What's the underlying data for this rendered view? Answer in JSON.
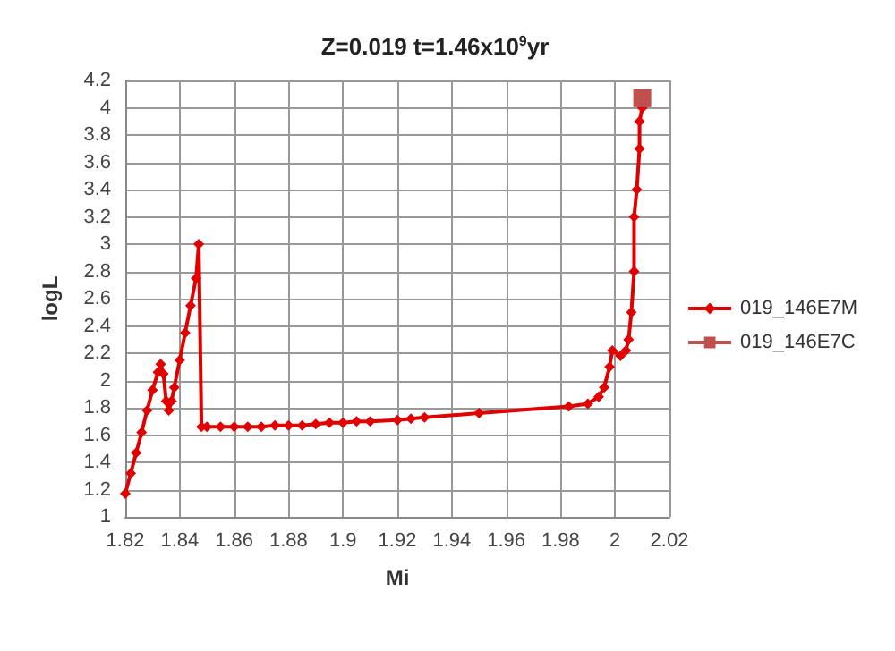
{
  "chart_data": {
    "type": "line",
    "title": "Z=0.019 t=1.46x10$^{9}$yr",
    "xlabel": "Mi",
    "ylabel": "logL",
    "xlim": [
      1.82,
      2.02
    ],
    "xticks": [
      1.82,
      1.84,
      1.86,
      1.88,
      1.9,
      1.92,
      1.94,
      1.96,
      1.98,
      2,
      2.02
    ],
    "ylim": [
      1,
      4.2
    ],
    "yticks": [
      1,
      1.2,
      1.4,
      1.6,
      1.8,
      2,
      2.2,
      2.4,
      2.6,
      2.8,
      3,
      3.2,
      3.4,
      3.6,
      3.8,
      4,
      4.2
    ],
    "grid": true,
    "legend": "right",
    "series": [
      {
        "name": "019_146E7M",
        "color": "#e00000",
        "marker": "diamond",
        "x": [
          1.82,
          1.822,
          1.824,
          1.826,
          1.828,
          1.83,
          1.832,
          1.833,
          1.834,
          1.835,
          1.836,
          1.837,
          1.838,
          1.84,
          1.842,
          1.844,
          1.846,
          1.847,
          1.848,
          1.85,
          1.855,
          1.86,
          1.865,
          1.87,
          1.875,
          1.88,
          1.885,
          1.89,
          1.895,
          1.9,
          1.905,
          1.91,
          1.92,
          1.925,
          1.93,
          1.95,
          1.983,
          1.99,
          1.994,
          1.996,
          1.998,
          1.999,
          2.002,
          2.004,
          2.005,
          2.006,
          2.007,
          2.007,
          2.008,
          2.009,
          2.009,
          2.01
        ],
        "values": [
          1.17,
          1.32,
          1.47,
          1.62,
          1.78,
          1.93,
          2.06,
          2.12,
          2.05,
          1.85,
          1.78,
          1.85,
          1.95,
          2.15,
          2.35,
          2.55,
          2.75,
          3.0,
          1.66,
          1.66,
          1.66,
          1.66,
          1.66,
          1.66,
          1.67,
          1.67,
          1.67,
          1.68,
          1.69,
          1.69,
          1.7,
          1.7,
          1.71,
          1.72,
          1.73,
          1.76,
          1.81,
          1.83,
          1.88,
          1.95,
          2.1,
          2.22,
          2.18,
          2.22,
          2.3,
          2.5,
          2.8,
          3.2,
          3.4,
          3.7,
          3.9,
          4.0
        ]
      },
      {
        "name": "019_146E7C",
        "color": "#c0504d",
        "marker": "square",
        "x": [
          2.01
        ],
        "values": [
          4.07
        ]
      }
    ]
  }
}
